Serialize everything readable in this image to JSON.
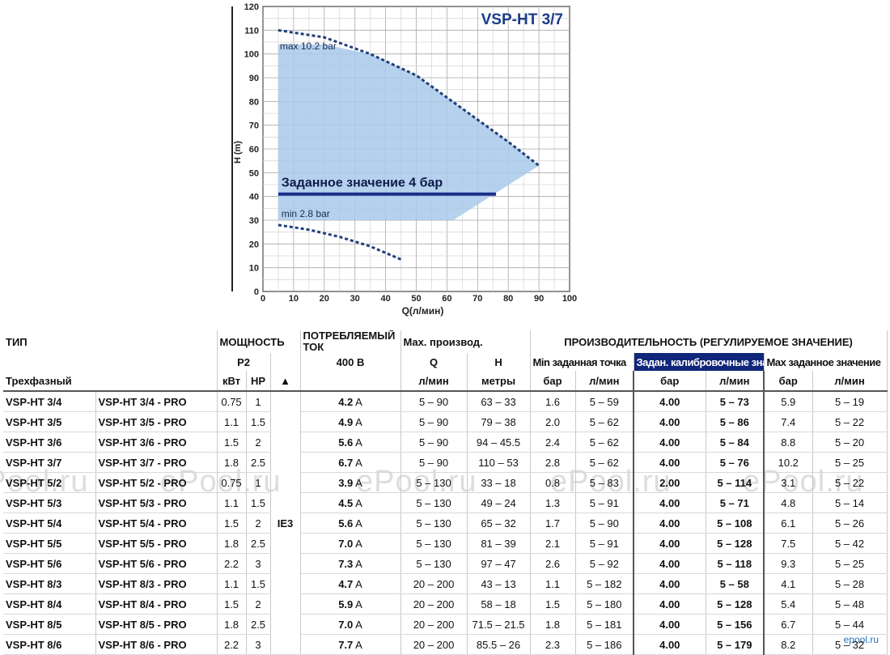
{
  "chart_data": {
    "type": "line",
    "title": "VSP-HT 3/7",
    "xlabel": "Q(л/мин)",
    "ylabel": "H (m)",
    "xlim": [
      0,
      100
    ],
    "ylim": [
      0,
      120
    ],
    "x_ticks": [
      "0",
      "10",
      "20",
      "30",
      "40",
      "50",
      "60",
      "70",
      "80",
      "90",
      "100"
    ],
    "y_ticks": [
      "0",
      "10",
      "20",
      "30",
      "40",
      "50",
      "60",
      "70",
      "80",
      "90",
      "100",
      "110",
      "120"
    ],
    "grid": true,
    "series": [
      {
        "name": "max 10.2 bar",
        "points": [
          [
            5,
            110
          ],
          [
            20,
            107
          ],
          [
            35,
            100
          ],
          [
            50,
            91
          ],
          [
            65,
            77
          ],
          [
            80,
            63
          ],
          [
            90,
            53
          ]
        ]
      },
      {
        "name": "min 2.8 bar",
        "points": [
          [
            5,
            28
          ],
          [
            15,
            26
          ],
          [
            25,
            23
          ],
          [
            35,
            19
          ],
          [
            45,
            13.5
          ]
        ]
      },
      {
        "name": "Заданное значение 4 бар",
        "points": [
          [
            5,
            41
          ],
          [
            76,
            41
          ]
        ]
      }
    ],
    "region": {
      "points": [
        [
          5,
          104
        ],
        [
          20,
          104
        ],
        [
          35,
          100
        ],
        [
          50,
          91
        ],
        [
          65,
          77
        ],
        [
          80,
          63
        ],
        [
          90,
          53
        ],
        [
          62,
          30
        ],
        [
          5,
          30
        ]
      ]
    },
    "annotations": [
      "max 10.2 bar",
      "Заданное значение 4 бар",
      "min 2.8 bar"
    ],
    "colors": {
      "region": "#a9c9ea",
      "curve": "#1f3f7a",
      "setpoint": "#1a2f8a",
      "title": "#1b3b8a"
    }
  },
  "table": {
    "header": {
      "type": "ТИП",
      "power": "МОЩНОСТЬ",
      "p2": "P2",
      "current": "ПОТРЕБЛЯЕМЫЙ ТОК",
      "voltage": "400 В",
      "max_perf": "Max. производ.",
      "q": "Q",
      "h": "H",
      "perf_reg": "ПРОИЗВОДИТЕЛЬНОСТЬ (РЕГУЛИРУЕМОЕ ЗНАЧЕНИЕ)",
      "min_point": "Min заданная точка",
      "calib": "Задан. калибровочные знач.",
      "max_point": "Max заданное значение",
      "phase": "Трехфазный",
      "kw": "кВт",
      "hp": "HP",
      "ie_symbol": "▲",
      "lmin": "л/мин",
      "meters": "метры",
      "bar": "бар"
    },
    "ie_class": "IE3",
    "rows": [
      {
        "model": "VSP-HT 3/4",
        "pro": "VSP-HT 3/4 - PRO",
        "kw": "0.75",
        "hp": "1",
        "amp": "4.2",
        "a": "A",
        "q": "5 – 90",
        "h": "63 – 33",
        "minbar": "1.6",
        "minq": "5 – 59",
        "cbar": "4.00",
        "cq": "5 – 73",
        "maxbar": "5.9",
        "maxq": "5 – 19"
      },
      {
        "model": "VSP-HT 3/5",
        "pro": "VSP-HT 3/5 - PRO",
        "kw": "1.1",
        "hp": "1.5",
        "amp": "4.9",
        "a": "A",
        "q": "5 – 90",
        "h": "79 – 38",
        "minbar": "2.0",
        "minq": "5 – 62",
        "cbar": "4.00",
        "cq": "5 – 86",
        "maxbar": "7.4",
        "maxq": "5 – 22"
      },
      {
        "model": "VSP-HT 3/6",
        "pro": "VSP-HT 3/6 - PRO",
        "kw": "1.5",
        "hp": "2",
        "amp": "5.6",
        "a": "A",
        "q": "5 – 90",
        "h": "94 – 45.5",
        "minbar": "2.4",
        "minq": "5 – 62",
        "cbar": "4.00",
        "cq": "5 – 84",
        "maxbar": "8.8",
        "maxq": "5 – 20"
      },
      {
        "model": "VSP-HT 3/7",
        "pro": "VSP-HT 3/7 - PRO",
        "kw": "1.8",
        "hp": "2.5",
        "amp": "6.7",
        "a": "A",
        "q": "5 – 90",
        "h": "110 – 53",
        "minbar": "2.8",
        "minq": "5 – 62",
        "cbar": "4.00",
        "cq": "5 – 76",
        "maxbar": "10.2",
        "maxq": "5 – 25"
      },
      {
        "model": "VSP-HT 5/2",
        "pro": "VSP-HT 5/2 - PRO",
        "kw": "0.75",
        "hp": "1",
        "amp": "3.9",
        "a": "A",
        "q": "5 – 130",
        "h": "33 – 18",
        "minbar": "0.8",
        "minq": "5 – 83",
        "cbar": "2.00",
        "cq": "5 – 114",
        "maxbar": "3.1",
        "maxq": "5 – 22"
      },
      {
        "model": "VSP-HT 5/3",
        "pro": "VSP-HT 5/3 - PRO",
        "kw": "1.1",
        "hp": "1.5",
        "amp": "4.5",
        "a": "A",
        "q": "5 – 130",
        "h": "49 – 24",
        "minbar": "1.3",
        "minq": "5 – 91",
        "cbar": "4.00",
        "cq": "5 – 71",
        "maxbar": "4.8",
        "maxq": "5 – 14"
      },
      {
        "model": "VSP-HT 5/4",
        "pro": "VSP-HT 5/4 - PRO",
        "kw": "1.5",
        "hp": "2",
        "amp": "5.6",
        "a": "A",
        "q": "5 – 130",
        "h": "65 – 32",
        "minbar": "1.7",
        "minq": "5 – 90",
        "cbar": "4.00",
        "cq": "5 – 108",
        "maxbar": "6.1",
        "maxq": "5 – 26"
      },
      {
        "model": "VSP-HT 5/5",
        "pro": "VSP-HT 5/5 - PRO",
        "kw": "1.8",
        "hp": "2.5",
        "amp": "7.0",
        "a": "A",
        "q": "5 – 130",
        "h": "81 – 39",
        "minbar": "2.1",
        "minq": "5 – 91",
        "cbar": "4.00",
        "cq": "5 – 128",
        "maxbar": "7.5",
        "maxq": "5 – 42"
      },
      {
        "model": "VSP-HT 5/6",
        "pro": "VSP-HT 5/6 - PRO",
        "kw": "2.2",
        "hp": "3",
        "amp": "7.3",
        "a": "A",
        "q": "5 – 130",
        "h": "97 – 47",
        "minbar": "2.6",
        "minq": "5 – 92",
        "cbar": "4.00",
        "cq": "5 – 118",
        "maxbar": "9.3",
        "maxq": "5 – 25"
      },
      {
        "model": "VSP-HT 8/3",
        "pro": "VSP-HT 8/3 - PRO",
        "kw": "1.1",
        "hp": "1.5",
        "amp": "4.7",
        "a": "A",
        "q": "20 – 200",
        "h": "43 – 13",
        "minbar": "1.1",
        "minq": "5 – 182",
        "cbar": "4.00",
        "cq": "5 – 58",
        "maxbar": "4.1",
        "maxq": "5 – 28"
      },
      {
        "model": "VSP-HT 8/4",
        "pro": "VSP-HT 8/4 - PRO",
        "kw": "1.5",
        "hp": "2",
        "amp": "5.9",
        "a": "A",
        "q": "20 – 200",
        "h": "58 – 18",
        "minbar": "1.5",
        "minq": "5 – 180",
        "cbar": "4.00",
        "cq": "5 – 128",
        "maxbar": "5.4",
        "maxq": "5 – 48"
      },
      {
        "model": "VSP-HT 8/5",
        "pro": "VSP-HT 8/5 - PRO",
        "kw": "1.8",
        "hp": "2.5",
        "amp": "7.0",
        "a": "A",
        "q": "20 – 200",
        "h": "71.5 – 21.5",
        "minbar": "1.8",
        "minq": "5 – 181",
        "cbar": "4.00",
        "cq": "5 – 156",
        "maxbar": "6.7",
        "maxq": "5 – 44"
      },
      {
        "model": "VSP-HT 8/6",
        "pro": "VSP-HT 8/6 - PRO",
        "kw": "2.2",
        "hp": "3",
        "amp": "7.7",
        "a": "A",
        "q": "20 – 200",
        "h": "85.5 – 26",
        "minbar": "2.3",
        "minq": "5 – 186",
        "cbar": "4.00",
        "cq": "5 – 179",
        "maxbar": "8.2",
        "maxq": "5 – 32"
      }
    ]
  },
  "watermarks": [
    "ePool.ru",
    "ePool.ru",
    "ePool.ru",
    "ePool.ru",
    "ePool.ru"
  ],
  "brand_mark": "epool.ru"
}
